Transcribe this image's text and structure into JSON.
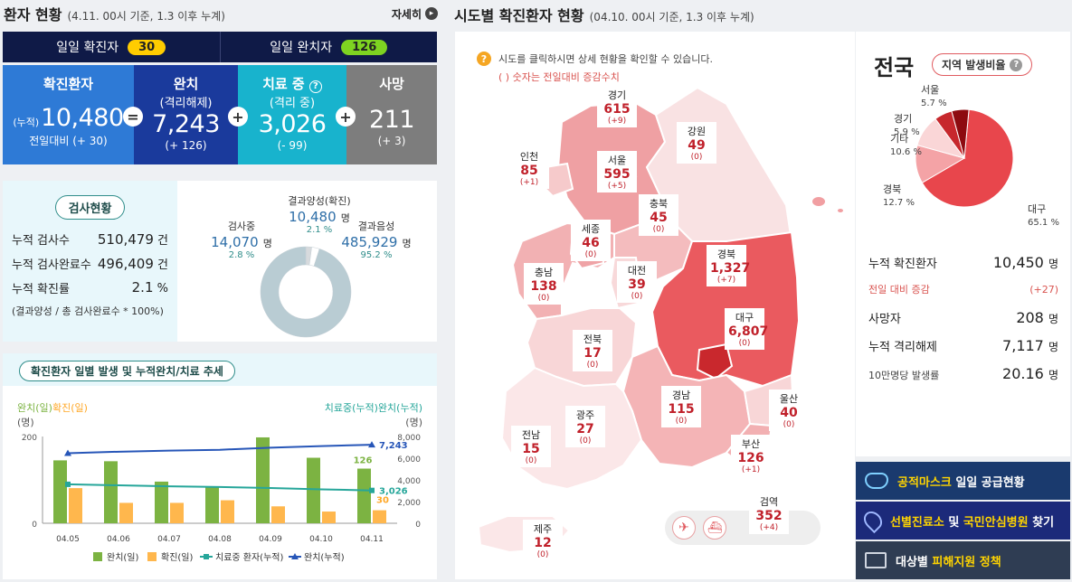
{
  "left_header": {
    "title": "환자 현황",
    "sub": "(4.11. 00시 기준, 1.3 이후 누계)",
    "more": "자세히"
  },
  "daily": {
    "confirmed_label": "일일 확진자",
    "confirmed": "30",
    "released_label": "일일 완치자",
    "released": "126"
  },
  "boxes": {
    "confirmed": {
      "title": "확진환자",
      "prefix": "(누적)",
      "value": "10,480",
      "change": "전일대비 (+ 30)"
    },
    "released": {
      "title": "완치",
      "sub": "(격리해제)",
      "value": "7,243",
      "change": "(+ 126)"
    },
    "isolated": {
      "title": "치료 중",
      "sub": "(격리 중)",
      "value": "3,026",
      "change": "(- 99)"
    },
    "deceased": {
      "title": "사망",
      "value": "211",
      "change": "(+ 3)"
    },
    "op_eq": "=",
    "op_plus": "+"
  },
  "tests": {
    "chip": "검사현황",
    "rows": [
      {
        "label": "누적 검사수",
        "value": "510,479",
        "unit": "건"
      },
      {
        "label": "누적 검사완료수",
        "value": "496,409",
        "unit": "건"
      },
      {
        "label": "누적 확진률",
        "value": "2.1",
        "unit": "%"
      }
    ],
    "note": "(결과양성 / 총 검사완료수 * 100%)",
    "donut": {
      "positive_label": "결과양성(확진)",
      "positive": "10,480",
      "positive_unit": "명",
      "positive_pct": "2.1 %",
      "testing_label": "검사중",
      "testing": "14,070",
      "testing_unit": "명",
      "testing_pct": "2.8 %",
      "negative_label": "결과음성",
      "negative": "485,929",
      "negative_unit": "명",
      "negative_pct": "95.2 %",
      "values": [
        2.1,
        2.8,
        95.2
      ],
      "colors": [
        "#d7dadd",
        "#ffffff",
        "#b9ccd3"
      ]
    }
  },
  "trend": {
    "chip": "확진환자 일별 발생 및 누적완치/치료 추세",
    "left_axis_label_a": "완치(일)",
    "left_axis_label_b": "확진(일)",
    "left_unit": "(명)",
    "right_axis_label": "치료중(누적)완치(누적)",
    "right_unit": "(명)",
    "left_ticks": [
      "200",
      "0"
    ],
    "right_ticks": [
      "8,000",
      "6,000",
      "4,000",
      "2,000",
      "0"
    ],
    "callouts": {
      "released_daily_last": "126",
      "confirmed_daily_last": "30",
      "released_cum_last": "7,243",
      "isolated_last": "3,026"
    },
    "legend": [
      "완치(일)",
      "확진(일)",
      "치료중 환자(누적)",
      "완치(누적)"
    ]
  },
  "chart_data": {
    "type": "bar",
    "categories": [
      "04.05",
      "04.06",
      "04.07",
      "04.08",
      "04.09",
      "04.10",
      "04.11"
    ],
    "series": [
      {
        "name": "완치(일)",
        "kind": "bar",
        "axis": "left",
        "color": "#7cb342",
        "values": [
          145,
          143,
          96,
          83,
          198,
          151,
          126
        ]
      },
      {
        "name": "확진(일)",
        "kind": "bar",
        "axis": "left",
        "color": "#ffb74d",
        "values": [
          81,
          47,
          47,
          53,
          39,
          27,
          30
        ]
      },
      {
        "name": "치료중 환자(누적)",
        "kind": "line",
        "axis": "right",
        "color": "#26a69a",
        "values": [
          3590,
          3500,
          3410,
          3340,
          3250,
          3130,
          3026
        ]
      },
      {
        "name": "완치(누적)",
        "kind": "line",
        "axis": "right",
        "color": "#2756b8",
        "values": [
          6463,
          6598,
          6694,
          6776,
          6973,
          7117,
          7243
        ]
      }
    ],
    "ylim_left": [
      0,
      200
    ],
    "ylim_right": [
      0,
      8000
    ]
  },
  "right_header": {
    "title": "시도별 확진환자 현황",
    "sub": "(04.10. 00시 기준, 1.3 이후 누계)"
  },
  "map": {
    "hint": "시도를 클릭하시면 상세 현황을 확인할 수 있습니다.",
    "hint2": "( ) 숫자는 전일대비 증감수치",
    "regions": [
      {
        "name": "경기",
        "value": "615",
        "change": "(+9)"
      },
      {
        "name": "강원",
        "value": "49",
        "change": "(0)"
      },
      {
        "name": "인천",
        "value": "85",
        "change": "(+1)"
      },
      {
        "name": "서울",
        "value": "595",
        "change": "(+5)"
      },
      {
        "name": "충북",
        "value": "45",
        "change": "(0)"
      },
      {
        "name": "세종",
        "value": "46",
        "change": "(0)"
      },
      {
        "name": "경북",
        "value": "1,327",
        "change": "(+7)"
      },
      {
        "name": "충남",
        "value": "138",
        "change": "(0)"
      },
      {
        "name": "대전",
        "value": "39",
        "change": "(0)"
      },
      {
        "name": "대구",
        "value": "6,807",
        "change": "(0)"
      },
      {
        "name": "전북",
        "value": "17",
        "change": "(0)"
      },
      {
        "name": "광주",
        "value": "27",
        "change": "(0)"
      },
      {
        "name": "경남",
        "value": "115",
        "change": "(0)"
      },
      {
        "name": "울산",
        "value": "40",
        "change": "(0)"
      },
      {
        "name": "전남",
        "value": "15",
        "change": "(0)"
      },
      {
        "name": "부산",
        "value": "126",
        "change": "(+1)"
      },
      {
        "name": "검역",
        "value": "352",
        "change": "(+4)"
      },
      {
        "name": "제주",
        "value": "12",
        "change": "(0)"
      }
    ]
  },
  "nation": {
    "title": "전국",
    "ratio_chip": "지역 발생비율",
    "pie": [
      {
        "name": "대구",
        "pct": "65.1 %",
        "value": 65.1,
        "color": "#e8464c"
      },
      {
        "name": "경북",
        "pct": "12.7 %",
        "value": 12.7,
        "color": "#f4a3a6"
      },
      {
        "name": "기타",
        "pct": "10.6 %",
        "value": 10.6,
        "color": "#fad6d7"
      },
      {
        "name": "경기",
        "pct": "5.9 %",
        "value": 5.9,
        "color": "#c7282d"
      },
      {
        "name": "서울",
        "pct": "5.7 %",
        "value": 5.7,
        "color": "#8e0b10"
      }
    ],
    "stats": [
      {
        "label": "누적 확진환자",
        "value": "10,450",
        "unit": "명"
      },
      {
        "label": "전일 대비 증감",
        "value": "(+27)",
        "unit": ""
      },
      {
        "label": "사망자",
        "value": "208",
        "unit": "명"
      },
      {
        "label": "누적 격리해제",
        "value": "7,117",
        "unit": "명"
      },
      {
        "label": "10만명당 발생률",
        "value": "20.16",
        "unit": "명"
      }
    ]
  },
  "side_buttons": {
    "mask_a": "공적마스크",
    "mask_b": "일일 공급현황",
    "clinic_a": "선별진료소",
    "clinic_b": "및",
    "clinic_c": "국민안심병원",
    "clinic_d": "찾기",
    "support_a": "대상별",
    "support_b": "피해지원 정책"
  }
}
